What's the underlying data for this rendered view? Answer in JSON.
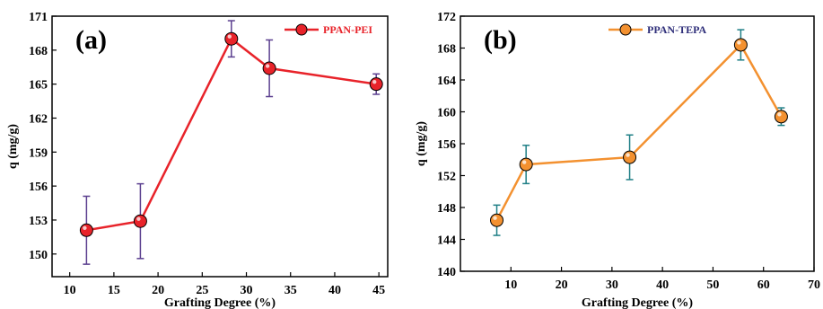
{
  "chart_data": [
    {
      "type": "line",
      "panel_label": "(a)",
      "xlabel": "Grafting Degree (%)",
      "ylabel": "q (mg/g)",
      "xlim": [
        8,
        46
      ],
      "ylim": [
        148,
        171
      ],
      "xticks": [
        10,
        15,
        20,
        25,
        30,
        35,
        40,
        45
      ],
      "yticks": [
        150,
        153,
        156,
        159,
        162,
        165,
        168,
        171
      ],
      "grid": false,
      "legend_position": "top-right",
      "series": [
        {
          "name": "PPAN-PEI",
          "color": "#e8232a",
          "errorbar_color": "#5b3f8f",
          "x": [
            11.9,
            18.0,
            28.3,
            32.6,
            44.7
          ],
          "y": [
            152.1,
            152.9,
            169.0,
            166.4,
            165.0
          ],
          "yerr": [
            3.0,
            3.3,
            1.6,
            2.5,
            0.9
          ]
        }
      ]
    },
    {
      "type": "line",
      "panel_label": "(b)",
      "xlabel": "Grafting Degree (%)",
      "ylabel": "q (mg/g)",
      "xlim": [
        0,
        70
      ],
      "ylim": [
        140,
        172
      ],
      "xticks": [
        10,
        20,
        30,
        40,
        50,
        60,
        70
      ],
      "yticks": [
        140,
        144,
        148,
        152,
        156,
        160,
        164,
        168,
        172
      ],
      "grid": false,
      "legend_position": "top-center",
      "series": [
        {
          "name": "PPAN-TEPA",
          "color": "#f39130",
          "errorbar_color": "#1f7f86",
          "x": [
            7.2,
            13.0,
            33.5,
            55.5,
            63.5
          ],
          "y": [
            146.4,
            153.4,
            154.3,
            168.4,
            159.4
          ],
          "yerr": [
            1.9,
            2.4,
            2.8,
            1.9,
            1.1
          ]
        }
      ]
    }
  ]
}
